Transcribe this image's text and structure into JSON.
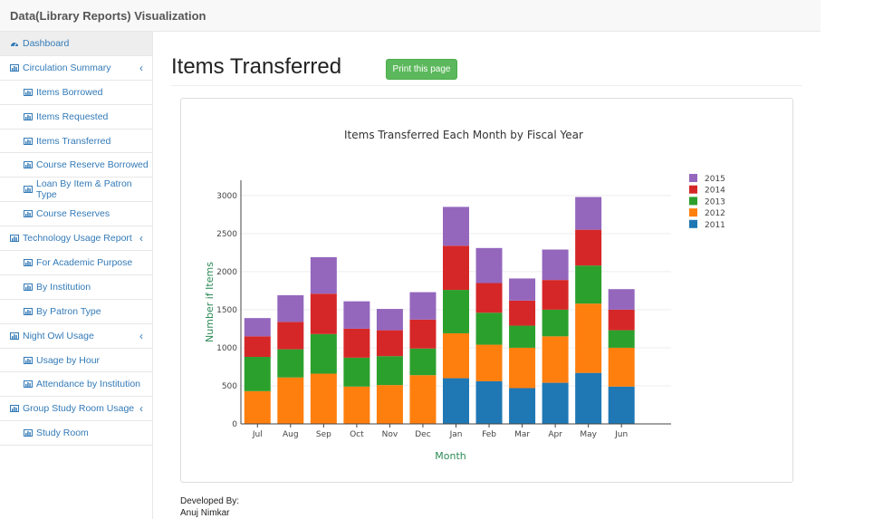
{
  "app": {
    "title": "Data(Library Reports) Visualization"
  },
  "sidebar": {
    "items": [
      {
        "label": "Dashboard",
        "level": "top",
        "active": true,
        "icon": "dashboard-icon"
      },
      {
        "label": "Circulation Summary",
        "level": "top",
        "expandable": true,
        "icon": "bar-chart-icon"
      },
      {
        "label": "Items Borrowed",
        "level": "sub",
        "icon": "bar-chart-icon"
      },
      {
        "label": "Items Requested",
        "level": "sub",
        "icon": "bar-chart-icon"
      },
      {
        "label": "Items Transferred",
        "level": "sub",
        "icon": "bar-chart-icon"
      },
      {
        "label": "Course Reserve Borrowed",
        "level": "sub",
        "icon": "bar-chart-icon"
      },
      {
        "label": "Loan By Item & Patron Type",
        "level": "sub",
        "icon": "bar-chart-icon"
      },
      {
        "label": "Course Reserves",
        "level": "sub",
        "icon": "bar-chart-icon"
      },
      {
        "label": "Technology Usage Report",
        "level": "top",
        "expandable": true,
        "icon": "bar-chart-icon"
      },
      {
        "label": "For Academic Purpose",
        "level": "sub",
        "icon": "bar-chart-icon"
      },
      {
        "label": "By Institution",
        "level": "sub",
        "icon": "bar-chart-icon"
      },
      {
        "label": "By Patron Type",
        "level": "sub",
        "icon": "bar-chart-icon"
      },
      {
        "label": "Night Owl Usage",
        "level": "top",
        "expandable": true,
        "icon": "bar-chart-icon"
      },
      {
        "label": "Usage by Hour",
        "level": "sub",
        "icon": "bar-chart-icon"
      },
      {
        "label": "Attendance by Institution",
        "level": "sub",
        "icon": "bar-chart-icon"
      },
      {
        "label": "Group Study Room Usage",
        "level": "top",
        "expandable": true,
        "icon": "bar-chart-icon"
      },
      {
        "label": "Study Room",
        "level": "sub",
        "icon": "bar-chart-icon"
      }
    ]
  },
  "main": {
    "title": "Items Transferred",
    "print_label": "Print this page"
  },
  "footer": {
    "line1": "Developed By:",
    "line2": "Anuj Nimkar"
  },
  "colors": {
    "link": "#337ab7",
    "button": "#5cb85c",
    "axis_title": "#2e8b57"
  },
  "chart_data": {
    "type": "bar",
    "stacked": true,
    "title": "Items Transferred Each Month by Fiscal Year",
    "xlabel": "Month",
    "ylabel": "Number if Items",
    "ylim": [
      0,
      3200
    ],
    "yticks": [
      0,
      500,
      1000,
      1500,
      2000,
      2500,
      3000
    ],
    "grid": true,
    "legend_position": "right",
    "categories": [
      "Jul",
      "Aug",
      "Sep",
      "Oct",
      "Nov",
      "Dec",
      "Jan",
      "Feb",
      "Mar",
      "Apr",
      "May",
      "Jun"
    ],
    "series": [
      {
        "name": "2011",
        "color": "#1f77b4",
        "values": [
          0,
          0,
          0,
          0,
          0,
          0,
          600,
          560,
          470,
          540,
          670,
          490
        ]
      },
      {
        "name": "2012",
        "color": "#ff7f0e",
        "values": [
          430,
          610,
          660,
          490,
          510,
          640,
          590,
          480,
          530,
          610,
          910,
          510
        ]
      },
      {
        "name": "2013",
        "color": "#2ca02c",
        "values": [
          450,
          370,
          520,
          380,
          380,
          350,
          570,
          420,
          290,
          350,
          500,
          230
        ]
      },
      {
        "name": "2014",
        "color": "#d62728",
        "values": [
          270,
          360,
          530,
          380,
          340,
          380,
          580,
          390,
          330,
          390,
          470,
          270
        ]
      },
      {
        "name": "2015",
        "color": "#9467bd",
        "values": [
          240,
          350,
          480,
          360,
          280,
          360,
          510,
          460,
          290,
          400,
          430,
          270
        ]
      }
    ]
  }
}
